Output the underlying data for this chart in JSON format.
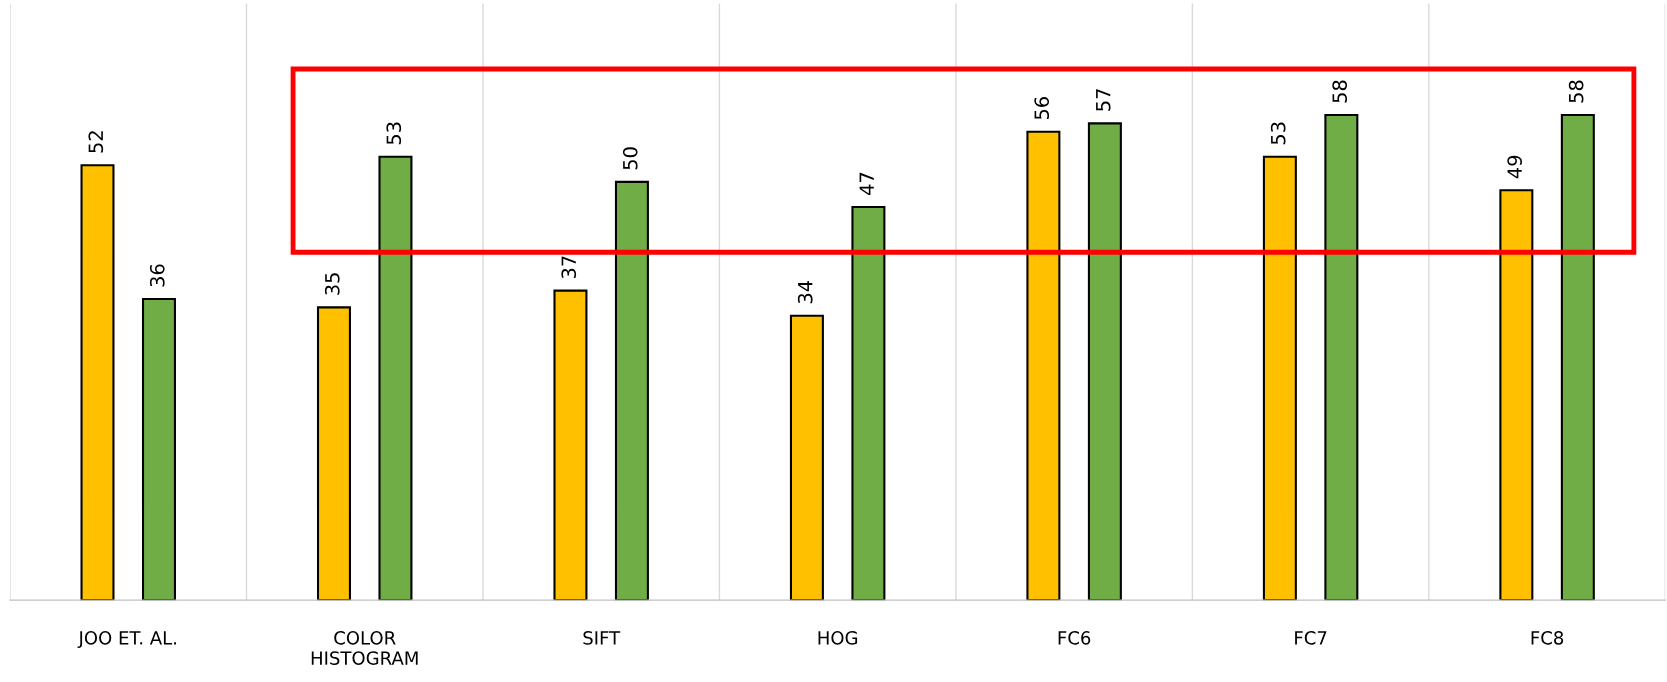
{
  "chart_data": {
    "type": "bar",
    "data_labels": true,
    "grid": "x",
    "categories": [
      "JOO ET. AL.",
      "COLOR\nHISTOGRAM",
      "SIFT",
      "HOG",
      "FC6",
      "FC7",
      "FC8"
    ],
    "series": [
      {
        "color": "#ffc000",
        "values": [
          52,
          35,
          37,
          34,
          56,
          53,
          49
        ]
      },
      {
        "color": "#70ad47",
        "values": [
          36,
          53,
          50,
          47,
          57,
          58,
          58
        ]
      }
    ]
  }
}
